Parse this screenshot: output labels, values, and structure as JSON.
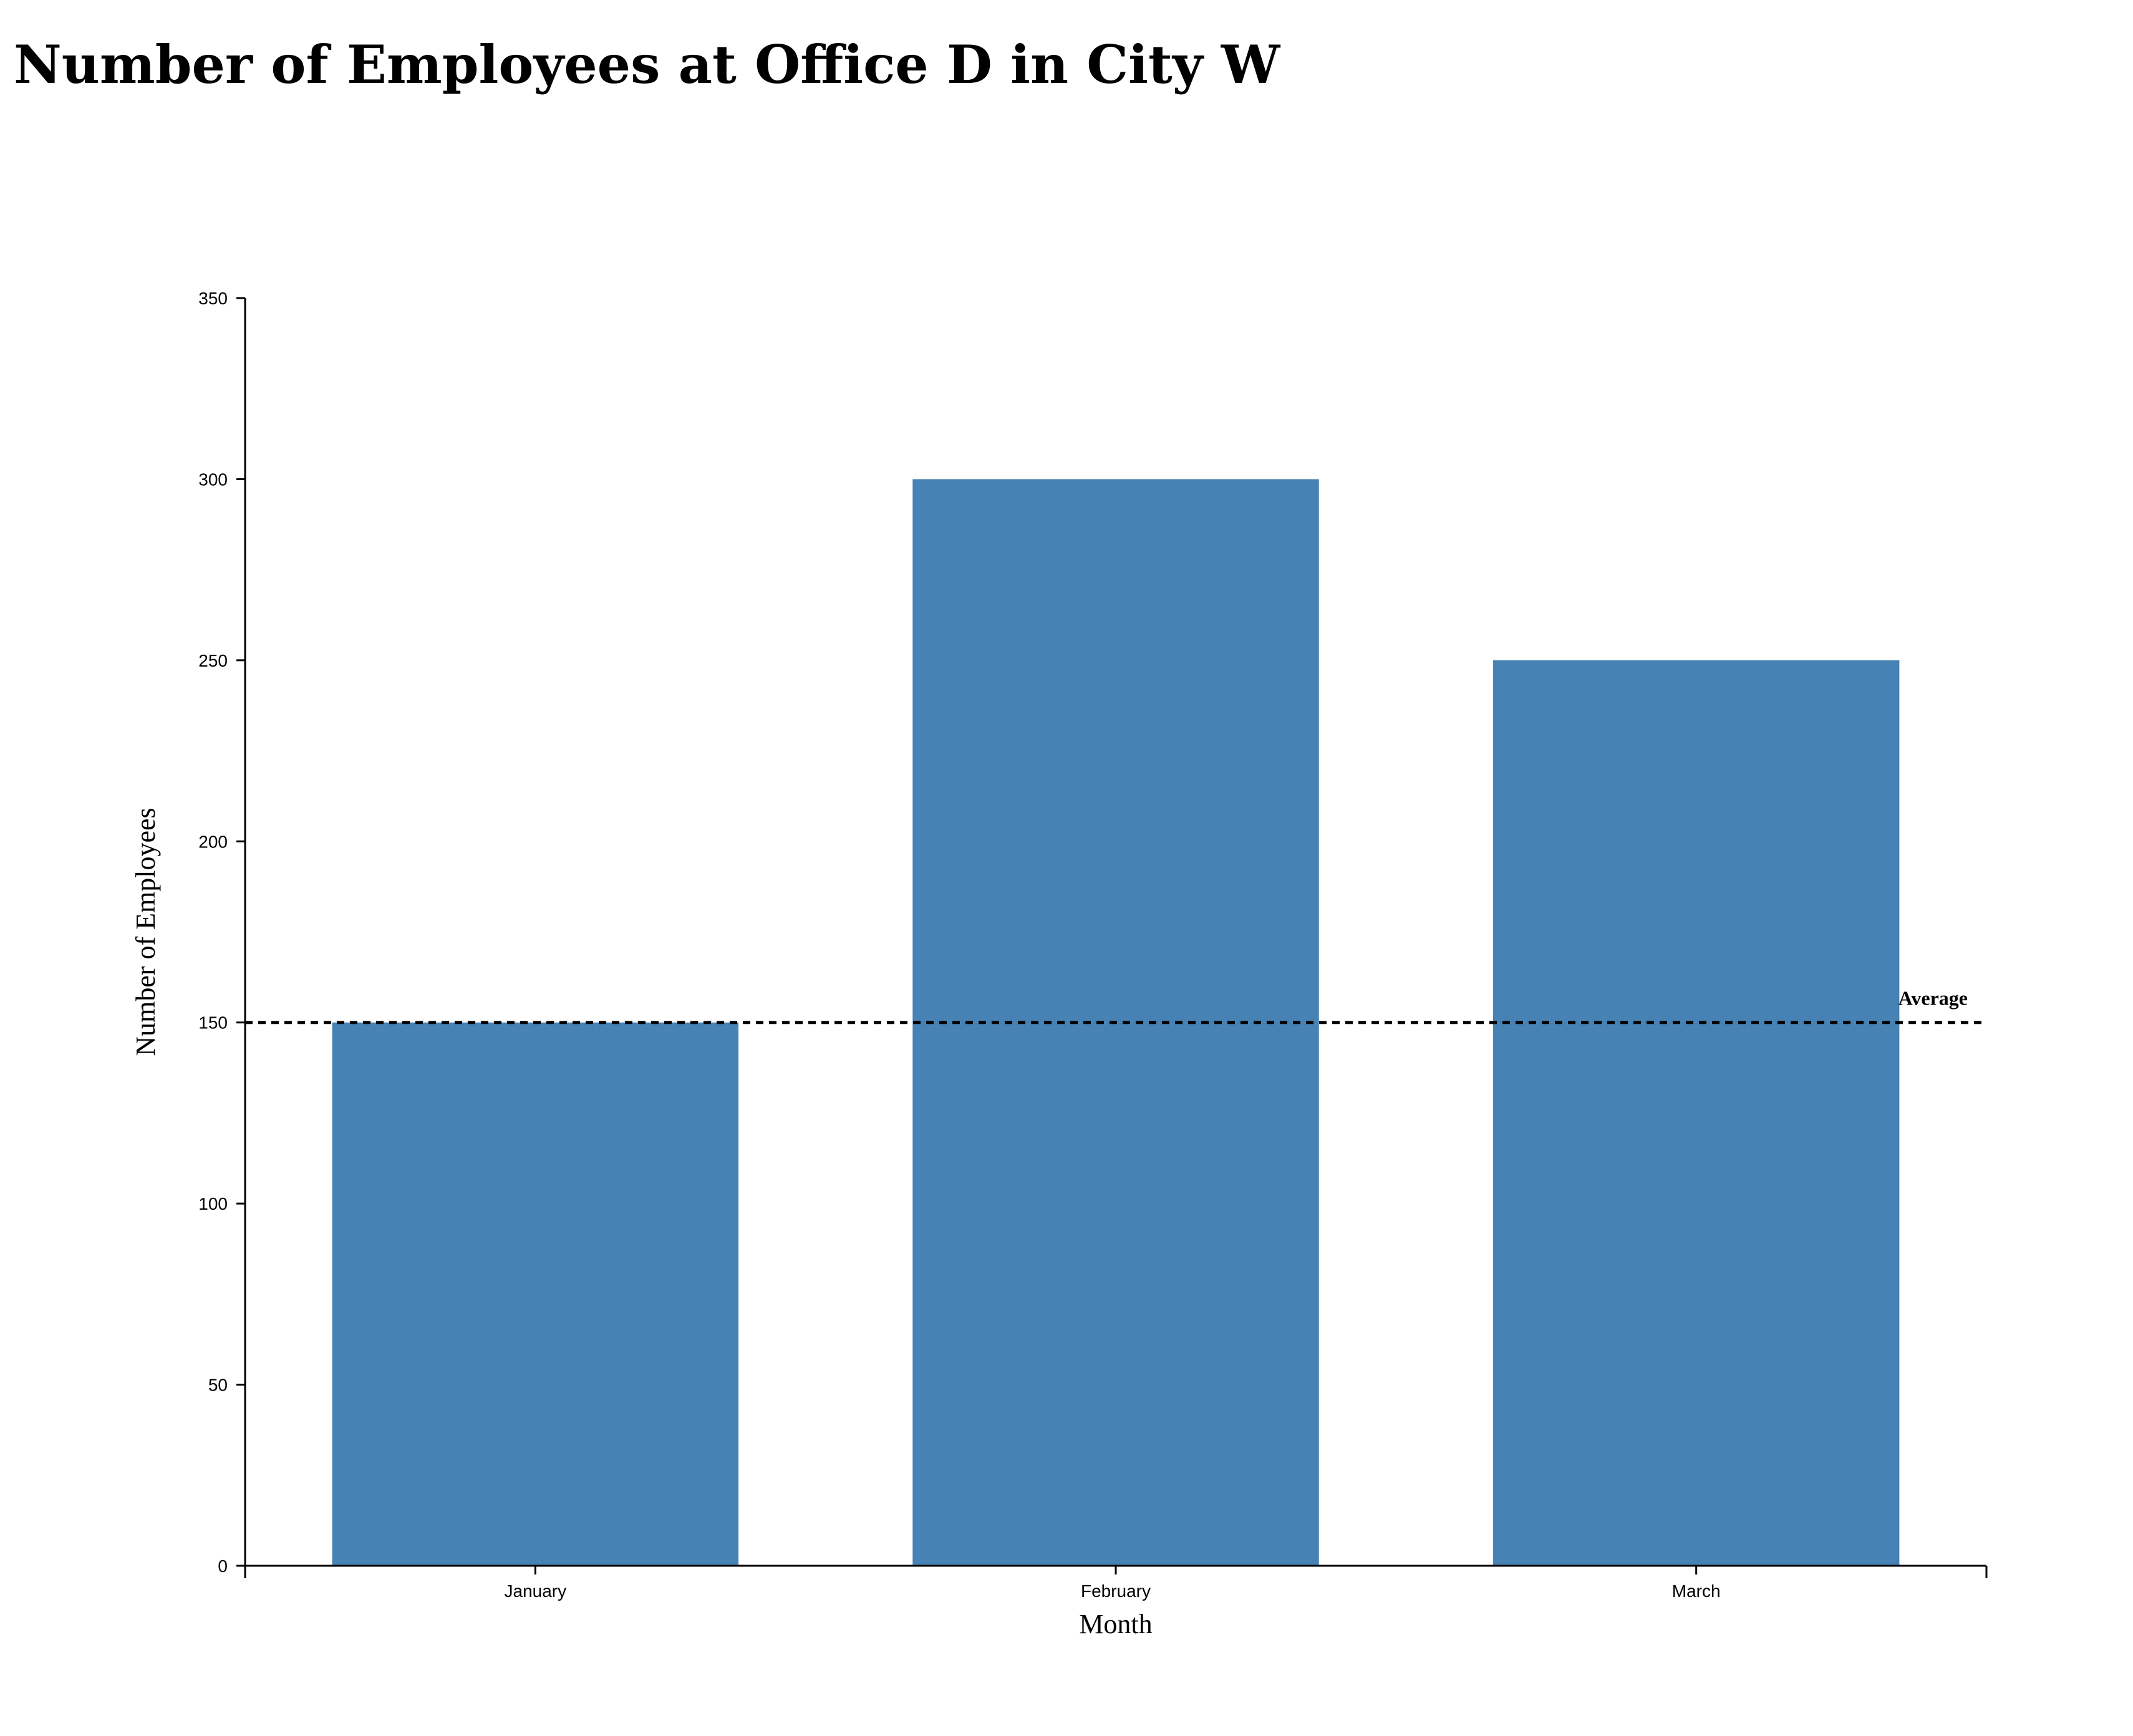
{
  "chart_data": {
    "type": "bar",
    "title": "Number of Employees at Office D in City W",
    "xlabel": "Month",
    "ylabel": "Number of Employees",
    "categories": [
      "January",
      "February",
      "March"
    ],
    "values": [
      150,
      300,
      250
    ],
    "ylim": [
      0,
      350
    ],
    "yticks": [
      0,
      50,
      100,
      150,
      200,
      250,
      300,
      350
    ],
    "grid": false,
    "bar_color": "#4682b4",
    "reference_line": {
      "label": "Average",
      "value": 150,
      "style": "dashed",
      "color": "#000000"
    }
  }
}
